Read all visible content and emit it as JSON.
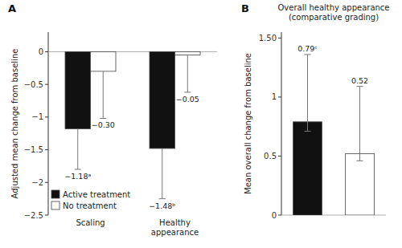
{
  "chart_data": [
    {
      "type": "bar",
      "annotations": [
        "A"
      ],
      "ylabel": "Adjusted mean change from baseline",
      "categories": [
        "Scaling",
        "Healthy\nappearance"
      ],
      "series": [
        {
          "name": "Active treatment",
          "color": "#111111",
          "values": [
            -1.18,
            -1.48
          ],
          "errors_down": [
            0.62,
            0.77
          ],
          "value_labels": [
            "−1.18ᵃ",
            "−1.48ᵇ"
          ]
        },
        {
          "name": "No treatment",
          "color": "#ffffff",
          "values": [
            -0.3,
            -0.05
          ],
          "errors_down": [
            0.72,
            0.57
          ],
          "value_labels": [
            "−0.30",
            "−0.05"
          ]
        }
      ],
      "ylim": [
        -2.5,
        0.3
      ],
      "yticks": [
        0,
        {
          "value": -0.5,
          "label": "−0.5"
        },
        {
          "value": -1,
          "label": "−1"
        },
        {
          "value": -1.5,
          "label": "−1.5"
        },
        {
          "value": -2,
          "label": "−2"
        },
        {
          "value": -2.5,
          "label": "−2.5"
        }
      ],
      "grid": false,
      "legend": "lower left",
      "data_labels": true
    },
    {
      "type": "bar",
      "annotations": [
        "B"
      ],
      "title": "Overall healthy appearance\n(comparative grading)",
      "ylabel": "Mean overall change from baseline",
      "categories": [
        null,
        null
      ],
      "values": [
        0.79,
        0.52
      ],
      "colors": [
        "#111111",
        "#ffffff"
      ],
      "errors_up": [
        0.57,
        0.57
      ],
      "errors_down": [
        0.08,
        0.06
      ],
      "value_labels": [
        "0.79ᶜ",
        "0.52"
      ],
      "ylim": [
        0,
        1.55
      ],
      "yticks": [
        0,
        0.5,
        1,
        {
          "value": 1.5,
          "label": "1.50"
        }
      ],
      "grid": false,
      "data_labels": true
    }
  ]
}
